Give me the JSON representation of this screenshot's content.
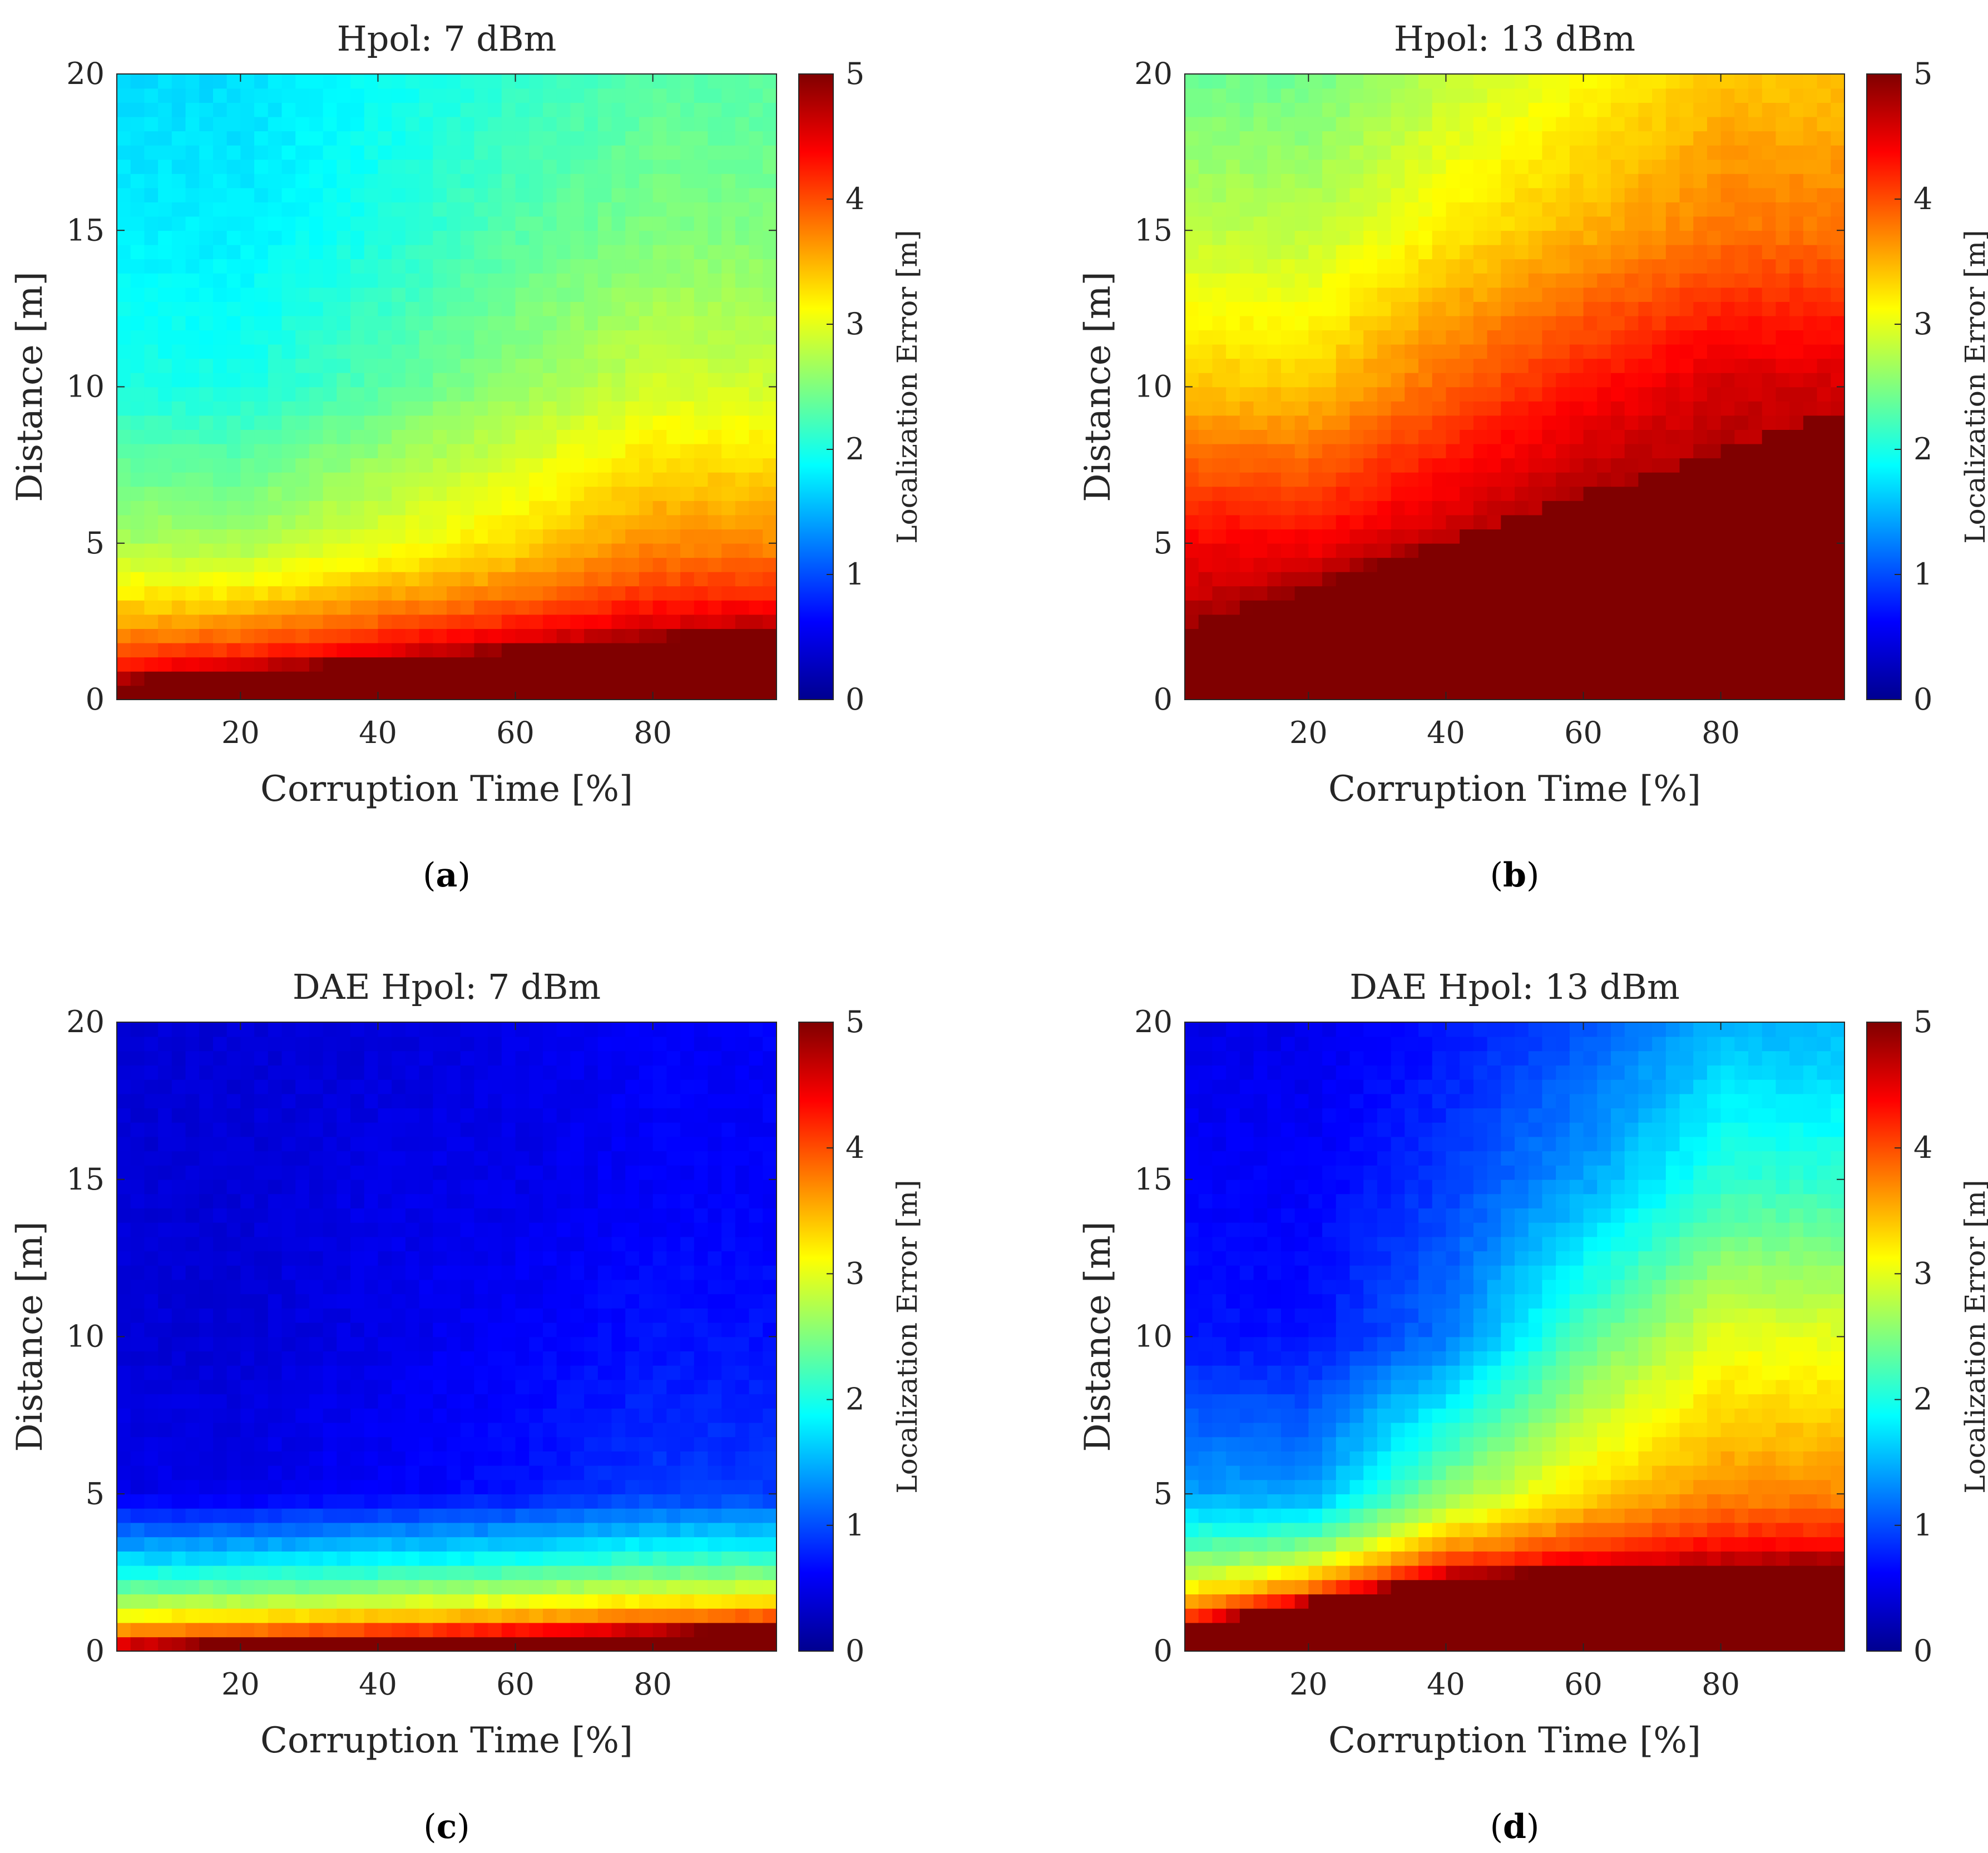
{
  "chart_data": [
    {
      "type": "heatmap",
      "title": "Hpol: 7 dBm",
      "caption": "a",
      "xlabel": "Corruption Time [%]",
      "ylabel": "Distance [m]",
      "colorbar_label": "Localization Error [m]",
      "xlim": [
        2,
        98
      ],
      "ylim": [
        0,
        20
      ],
      "clim": [
        0,
        5
      ],
      "xticks": [
        "20",
        "40",
        "60",
        "80"
      ],
      "yticks": [
        "0",
        "5",
        "10",
        "15",
        "20"
      ],
      "cticks": [
        "0",
        "1",
        "2",
        "3",
        "4",
        "5"
      ],
      "colormap": "jet",
      "x_values": [
        20,
        40,
        60,
        80
      ],
      "y_values": [
        0,
        5,
        10,
        15,
        20
      ],
      "values": [
        [
          5.0,
          5.0,
          5.0,
          5.0
        ],
        [
          2.7,
          3.0,
          3.3,
          3.7
        ],
        [
          2.0,
          2.3,
          2.6,
          2.9
        ],
        [
          1.8,
          2.0,
          2.3,
          2.5
        ],
        [
          1.7,
          1.9,
          2.1,
          2.3
        ]
      ],
      "saturation_boundary": {
        "x": [
          2,
          98
        ],
        "y": [
          0.6,
          2.3
        ]
      }
    },
    {
      "type": "heatmap",
      "title": "Hpol: 13 dBm",
      "caption": "b",
      "xlabel": "Corruption Time [%]",
      "ylabel": "Distance [m]",
      "colorbar_label": "Localization Error [m]",
      "xlim": [
        2,
        98
      ],
      "ylim": [
        0,
        20
      ],
      "clim": [
        0,
        5
      ],
      "xticks": [
        "20",
        "40",
        "60",
        "80"
      ],
      "yticks": [
        "0",
        "5",
        "10",
        "15",
        "20"
      ],
      "cticks": [
        "0",
        "1",
        "2",
        "3",
        "4",
        "5"
      ],
      "colormap": "jet",
      "x_values": [
        20,
        40,
        60,
        80
      ],
      "y_values": [
        0,
        5,
        10,
        15,
        20
      ],
      "values": [
        [
          5.0,
          5.0,
          5.0,
          5.0
        ],
        [
          4.4,
          4.7,
          5.0,
          5.0
        ],
        [
          3.4,
          3.9,
          4.3,
          4.6
        ],
        [
          2.8,
          3.2,
          3.5,
          3.8
        ],
        [
          2.4,
          2.8,
          3.1,
          3.4
        ]
      ],
      "saturation_boundary": {
        "x": [
          2,
          5,
          98
        ],
        "y": [
          2.2,
          2.5,
          9.3
        ]
      }
    },
    {
      "type": "heatmap",
      "title": "DAE Hpol: 7 dBm",
      "caption": "c",
      "xlabel": "Corruption Time [%]",
      "ylabel": "Distance [m]",
      "colorbar_label": "Localization Error [m]",
      "xlim": [
        2,
        98
      ],
      "ylim": [
        0,
        20
      ],
      "clim": [
        0,
        5
      ],
      "xticks": [
        "20",
        "40",
        "60",
        "80"
      ],
      "yticks": [
        "0",
        "5",
        "10",
        "15",
        "20"
      ],
      "cticks": [
        "0",
        "1",
        "2",
        "3",
        "4",
        "5"
      ],
      "colormap": "jet",
      "x_values": [
        20,
        40,
        60,
        80
      ],
      "y_values": [
        0,
        5,
        10,
        15,
        20
      ],
      "values": [
        [
          5.0,
          5.0,
          5.0,
          5.0
        ],
        [
          0.5,
          0.6,
          0.7,
          0.9
        ],
        [
          0.4,
          0.5,
          0.6,
          0.7
        ],
        [
          0.4,
          0.5,
          0.5,
          0.6
        ],
        [
          0.4,
          0.4,
          0.5,
          0.6
        ]
      ],
      "saturation_boundary": {
        "x": [
          2,
          98
        ],
        "y": [
          0.15,
          0.75
        ]
      }
    },
    {
      "type": "heatmap",
      "title": "DAE Hpol: 13 dBm",
      "caption": "d",
      "xlabel": "Corruption Time [%]",
      "ylabel": "Distance [m]",
      "colorbar_label": "Localization Error [m]",
      "xlim": [
        2,
        98
      ],
      "ylim": [
        0,
        20
      ],
      "clim": [
        0,
        5
      ],
      "xticks": [
        "20",
        "40",
        "60",
        "80"
      ],
      "yticks": [
        "0",
        "5",
        "10",
        "15",
        "20"
      ],
      "cticks": [
        "0",
        "1",
        "2",
        "3",
        "4",
        "5"
      ],
      "colormap": "jet",
      "x_values": [
        20,
        40,
        60,
        80
      ],
      "y_values": [
        0,
        5,
        10,
        15,
        20
      ],
      "values": [
        [
          5.0,
          5.0,
          5.0,
          5.0
        ],
        [
          1.4,
          2.6,
          3.3,
          3.7
        ],
        [
          0.7,
          1.2,
          2.3,
          3.0
        ],
        [
          0.6,
          0.9,
          1.4,
          2.1
        ],
        [
          0.5,
          0.7,
          1.0,
          1.5
        ]
      ],
      "saturation_boundary": {
        "x": [
          2,
          40,
          98
        ],
        "y": [
          0.8,
          2.4,
          2.9
        ]
      }
    }
  ]
}
